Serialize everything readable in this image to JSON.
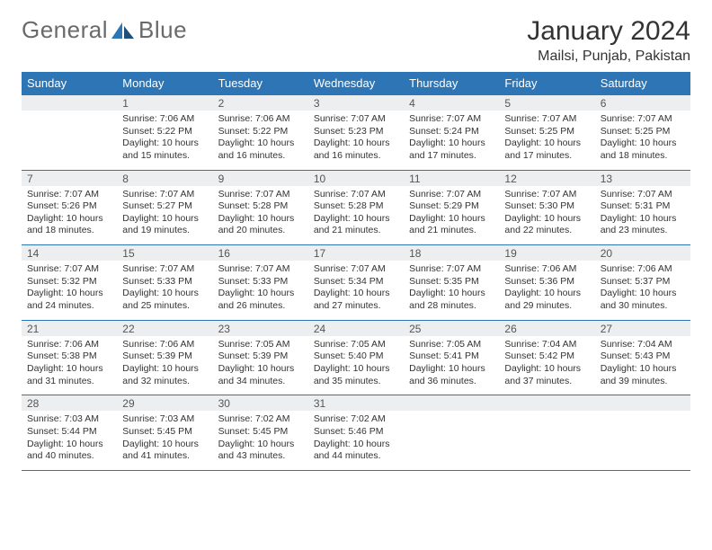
{
  "logo": {
    "text1": "General",
    "text2": "Blue"
  },
  "title": "January 2024",
  "location": "Mailsi, Punjab, Pakistan",
  "colors": {
    "header_bg": "#2e75b6",
    "header_text": "#ffffff",
    "daynum_bg": "#eceef0",
    "border": "#2e75b6",
    "body_text": "#333333"
  },
  "layout": {
    "cols": 7,
    "rows": 5,
    "cell_font_size": 10.5,
    "header_font_size": 13
  },
  "dow": [
    "Sunday",
    "Monday",
    "Tuesday",
    "Wednesday",
    "Thursday",
    "Friday",
    "Saturday"
  ],
  "weeks": [
    [
      {
        "n": "",
        "sr": "",
        "ss": "",
        "dl": ""
      },
      {
        "n": "1",
        "sr": "Sunrise: 7:06 AM",
        "ss": "Sunset: 5:22 PM",
        "dl": "Daylight: 10 hours and 15 minutes."
      },
      {
        "n": "2",
        "sr": "Sunrise: 7:06 AM",
        "ss": "Sunset: 5:22 PM",
        "dl": "Daylight: 10 hours and 16 minutes."
      },
      {
        "n": "3",
        "sr": "Sunrise: 7:07 AM",
        "ss": "Sunset: 5:23 PM",
        "dl": "Daylight: 10 hours and 16 minutes."
      },
      {
        "n": "4",
        "sr": "Sunrise: 7:07 AM",
        "ss": "Sunset: 5:24 PM",
        "dl": "Daylight: 10 hours and 17 minutes."
      },
      {
        "n": "5",
        "sr": "Sunrise: 7:07 AM",
        "ss": "Sunset: 5:25 PM",
        "dl": "Daylight: 10 hours and 17 minutes."
      },
      {
        "n": "6",
        "sr": "Sunrise: 7:07 AM",
        "ss": "Sunset: 5:25 PM",
        "dl": "Daylight: 10 hours and 18 minutes."
      }
    ],
    [
      {
        "n": "7",
        "sr": "Sunrise: 7:07 AM",
        "ss": "Sunset: 5:26 PM",
        "dl": "Daylight: 10 hours and 18 minutes."
      },
      {
        "n": "8",
        "sr": "Sunrise: 7:07 AM",
        "ss": "Sunset: 5:27 PM",
        "dl": "Daylight: 10 hours and 19 minutes."
      },
      {
        "n": "9",
        "sr": "Sunrise: 7:07 AM",
        "ss": "Sunset: 5:28 PM",
        "dl": "Daylight: 10 hours and 20 minutes."
      },
      {
        "n": "10",
        "sr": "Sunrise: 7:07 AM",
        "ss": "Sunset: 5:28 PM",
        "dl": "Daylight: 10 hours and 21 minutes."
      },
      {
        "n": "11",
        "sr": "Sunrise: 7:07 AM",
        "ss": "Sunset: 5:29 PM",
        "dl": "Daylight: 10 hours and 21 minutes."
      },
      {
        "n": "12",
        "sr": "Sunrise: 7:07 AM",
        "ss": "Sunset: 5:30 PM",
        "dl": "Daylight: 10 hours and 22 minutes."
      },
      {
        "n": "13",
        "sr": "Sunrise: 7:07 AM",
        "ss": "Sunset: 5:31 PM",
        "dl": "Daylight: 10 hours and 23 minutes."
      }
    ],
    [
      {
        "n": "14",
        "sr": "Sunrise: 7:07 AM",
        "ss": "Sunset: 5:32 PM",
        "dl": "Daylight: 10 hours and 24 minutes."
      },
      {
        "n": "15",
        "sr": "Sunrise: 7:07 AM",
        "ss": "Sunset: 5:33 PM",
        "dl": "Daylight: 10 hours and 25 minutes."
      },
      {
        "n": "16",
        "sr": "Sunrise: 7:07 AM",
        "ss": "Sunset: 5:33 PM",
        "dl": "Daylight: 10 hours and 26 minutes."
      },
      {
        "n": "17",
        "sr": "Sunrise: 7:07 AM",
        "ss": "Sunset: 5:34 PM",
        "dl": "Daylight: 10 hours and 27 minutes."
      },
      {
        "n": "18",
        "sr": "Sunrise: 7:07 AM",
        "ss": "Sunset: 5:35 PM",
        "dl": "Daylight: 10 hours and 28 minutes."
      },
      {
        "n": "19",
        "sr": "Sunrise: 7:06 AM",
        "ss": "Sunset: 5:36 PM",
        "dl": "Daylight: 10 hours and 29 minutes."
      },
      {
        "n": "20",
        "sr": "Sunrise: 7:06 AM",
        "ss": "Sunset: 5:37 PM",
        "dl": "Daylight: 10 hours and 30 minutes."
      }
    ],
    [
      {
        "n": "21",
        "sr": "Sunrise: 7:06 AM",
        "ss": "Sunset: 5:38 PM",
        "dl": "Daylight: 10 hours and 31 minutes."
      },
      {
        "n": "22",
        "sr": "Sunrise: 7:06 AM",
        "ss": "Sunset: 5:39 PM",
        "dl": "Daylight: 10 hours and 32 minutes."
      },
      {
        "n": "23",
        "sr": "Sunrise: 7:05 AM",
        "ss": "Sunset: 5:39 PM",
        "dl": "Daylight: 10 hours and 34 minutes."
      },
      {
        "n": "24",
        "sr": "Sunrise: 7:05 AM",
        "ss": "Sunset: 5:40 PM",
        "dl": "Daylight: 10 hours and 35 minutes."
      },
      {
        "n": "25",
        "sr": "Sunrise: 7:05 AM",
        "ss": "Sunset: 5:41 PM",
        "dl": "Daylight: 10 hours and 36 minutes."
      },
      {
        "n": "26",
        "sr": "Sunrise: 7:04 AM",
        "ss": "Sunset: 5:42 PM",
        "dl": "Daylight: 10 hours and 37 minutes."
      },
      {
        "n": "27",
        "sr": "Sunrise: 7:04 AM",
        "ss": "Sunset: 5:43 PM",
        "dl": "Daylight: 10 hours and 39 minutes."
      }
    ],
    [
      {
        "n": "28",
        "sr": "Sunrise: 7:03 AM",
        "ss": "Sunset: 5:44 PM",
        "dl": "Daylight: 10 hours and 40 minutes."
      },
      {
        "n": "29",
        "sr": "Sunrise: 7:03 AM",
        "ss": "Sunset: 5:45 PM",
        "dl": "Daylight: 10 hours and 41 minutes."
      },
      {
        "n": "30",
        "sr": "Sunrise: 7:02 AM",
        "ss": "Sunset: 5:45 PM",
        "dl": "Daylight: 10 hours and 43 minutes."
      },
      {
        "n": "31",
        "sr": "Sunrise: 7:02 AM",
        "ss": "Sunset: 5:46 PM",
        "dl": "Daylight: 10 hours and 44 minutes."
      },
      {
        "n": "",
        "sr": "",
        "ss": "",
        "dl": ""
      },
      {
        "n": "",
        "sr": "",
        "ss": "",
        "dl": ""
      },
      {
        "n": "",
        "sr": "",
        "ss": "",
        "dl": ""
      }
    ]
  ]
}
